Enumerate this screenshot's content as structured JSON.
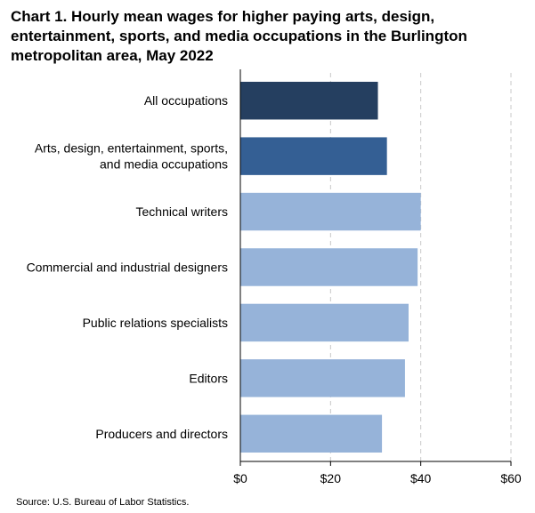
{
  "chart_data": {
    "type": "bar",
    "orientation": "horizontal",
    "title": "Chart 1. Hourly mean wages for higher paying arts, design, entertainment, sports, and media occupations in the Burlington metropolitan area, May 2022",
    "categories": [
      "All occupations",
      "Arts, design, entertainment, sports, and media occupations",
      "Technical writers",
      "Commercial and industrial designers",
      "Public relations specialists",
      "Editors",
      "Producers and directors"
    ],
    "category_lines": [
      [
        "All occupations"
      ],
      [
        "Arts, design, entertainment, sports,",
        "and media occupations"
      ],
      [
        "Technical writers"
      ],
      [
        "Commercial and industrial designers"
      ],
      [
        "Public relations specialists"
      ],
      [
        "Editors"
      ],
      [
        "Producers and directors"
      ]
    ],
    "values": [
      30.5,
      32.5,
      40.0,
      39.3,
      37.3,
      36.5,
      31.4
    ],
    "bar_colors": [
      "#253f60",
      "#345f94",
      "#96b3d9",
      "#96b3d9",
      "#96b3d9",
      "#96b3d9",
      "#96b3d9"
    ],
    "xlim": [
      0,
      60
    ],
    "x_ticks": [
      0,
      20,
      40,
      60
    ],
    "x_tick_labels": [
      "$0",
      "$20",
      "$40",
      "$60"
    ],
    "grid": "vertical dashed",
    "xlabel": "",
    "ylabel": ""
  },
  "source": "Source: U.S. Bureau of Labor Statistics."
}
